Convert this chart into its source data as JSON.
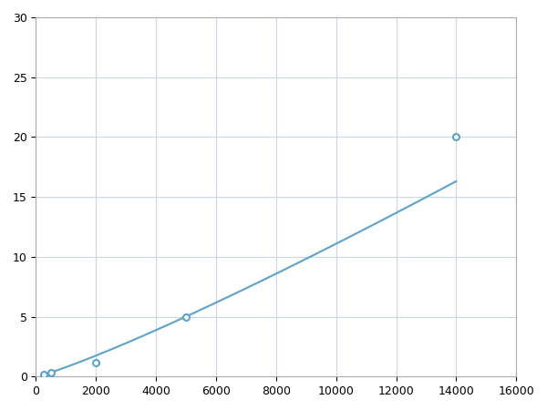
{
  "x_data": [
    250,
    500,
    2000,
    5000,
    14000
  ],
  "y_data": [
    0.2,
    0.35,
    1.2,
    5.0,
    20.0
  ],
  "line_color": "#5ba3c9",
  "marker_color": "#5ba3c9",
  "marker_size": 5,
  "line_width": 1.5,
  "xlim": [
    0,
    16000
  ],
  "ylim": [
    0,
    30
  ],
  "xticks": [
    0,
    2000,
    4000,
    6000,
    8000,
    10000,
    12000,
    14000,
    16000
  ],
  "yticks": [
    0,
    5,
    10,
    15,
    20,
    25,
    30
  ],
  "grid_color": "#c8d8e8",
  "background_color": "#ffffff",
  "figsize": [
    6.0,
    4.5
  ],
  "dpi": 100
}
